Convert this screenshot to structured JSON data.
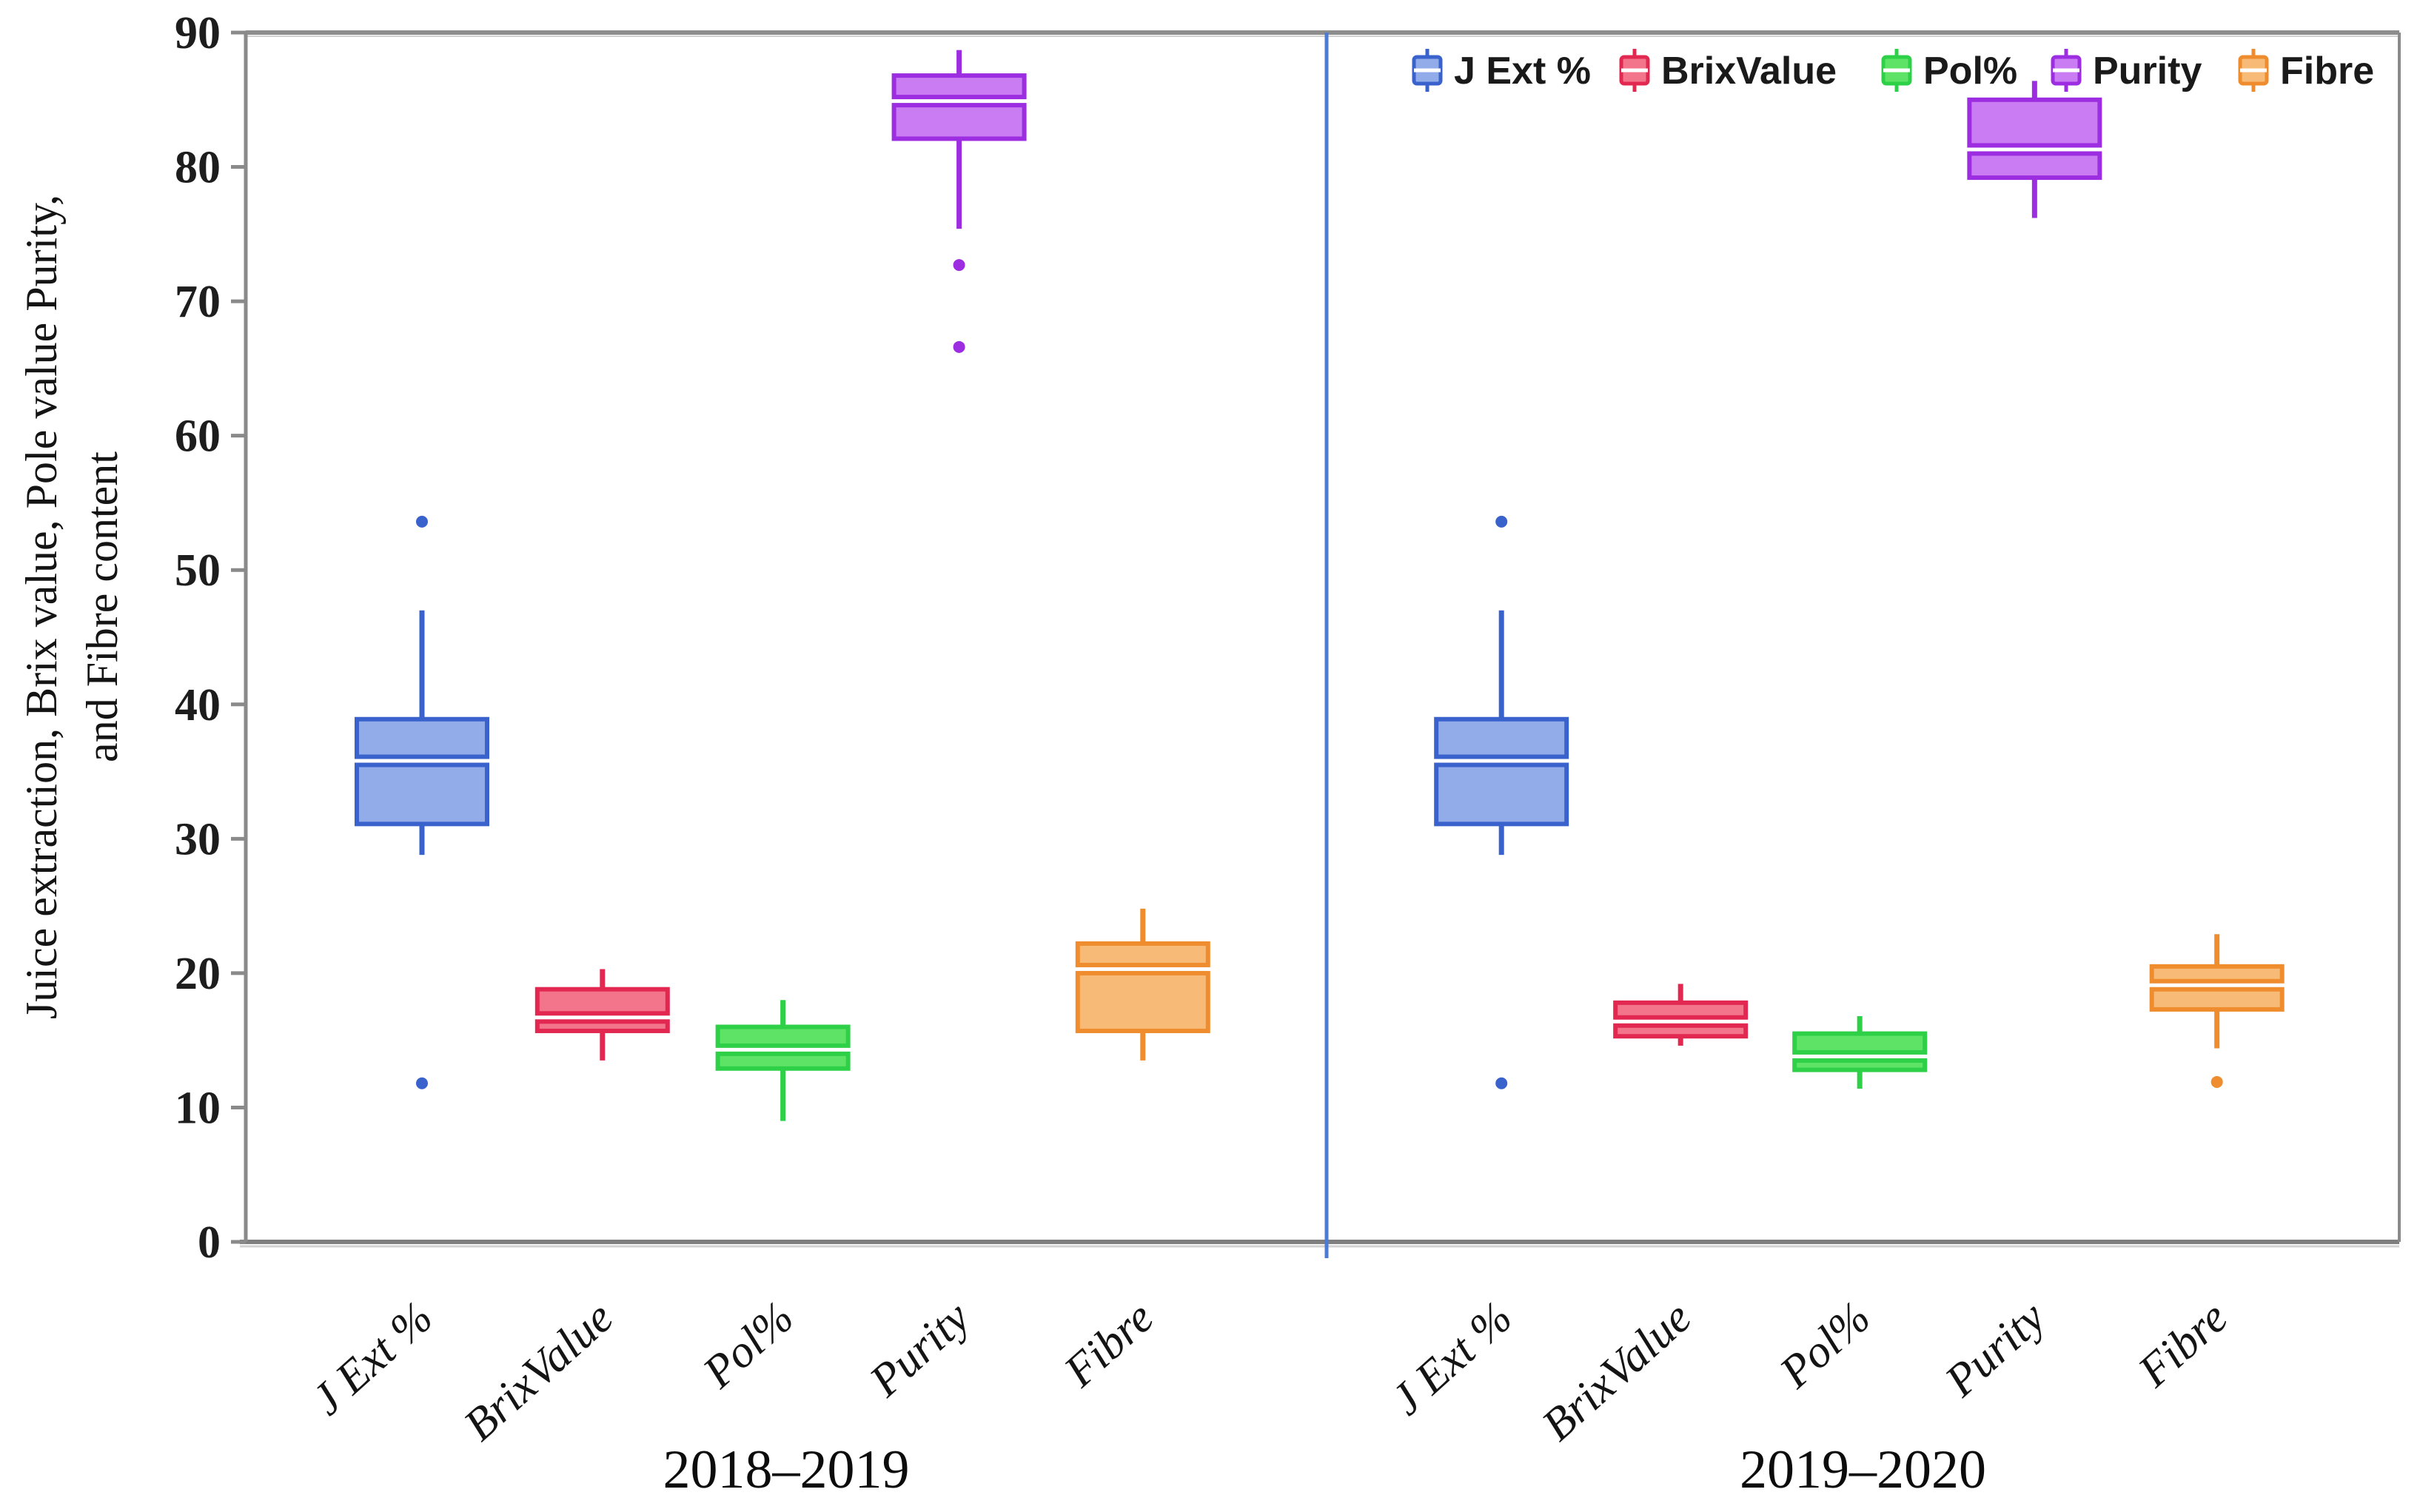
{
  "chart_data": {
    "type": "boxplot",
    "title": "",
    "ylabel_lines": [
      "Juice extraction, Brix value, Pole value Purity,",
      "and Fibre content"
    ],
    "xlabel": "",
    "ylim": [
      0,
      90
    ],
    "y_ticks": [
      0,
      10,
      20,
      30,
      40,
      50,
      60,
      70,
      80,
      90
    ],
    "grid": false,
    "legend_position": "top-right",
    "legend_items": [
      "J Ext %",
      "BrixValue",
      "Pol%",
      "Purity",
      "Fibre"
    ],
    "series": [
      {
        "name": "J Ext %",
        "fill": "#92abe9",
        "stroke": "#3a62cc"
      },
      {
        "name": "BrixValue",
        "fill": "#f3758b",
        "stroke": "#e22851"
      },
      {
        "name": "Pol%",
        "fill": "#5ee366",
        "stroke": "#2ed048"
      },
      {
        "name": "Purity",
        "fill": "#ca7cf3",
        "stroke": "#9c2de0"
      },
      {
        "name": "Fibre",
        "fill": "#f8bb77",
        "stroke": "#ee8c2e"
      }
    ],
    "groups": [
      {
        "label": "2018–2019",
        "boxes": [
          {
            "series": "J Ext %",
            "whisker_low": 28.8,
            "q1": 31.1,
            "median": 35.8,
            "q3": 38.9,
            "whisker_high": 47.0,
            "outliers": [
              53.6,
              11.8
            ]
          },
          {
            "series": "BrixValue",
            "whisker_low": 13.5,
            "q1": 15.7,
            "median": 16.7,
            "q3": 18.8,
            "whisker_high": 20.3,
            "outliers": []
          },
          {
            "series": "Pol%",
            "whisker_low": 9.0,
            "q1": 12.9,
            "median": 14.3,
            "q3": 16.0,
            "whisker_high": 18.0,
            "outliers": []
          },
          {
            "series": "Purity",
            "whisker_low": 75.4,
            "q1": 82.1,
            "median": 84.9,
            "q3": 86.8,
            "whisker_high": 88.7,
            "outliers": [
              72.7,
              66.6
            ]
          },
          {
            "series": "Fibre",
            "whisker_low": 13.5,
            "q1": 15.7,
            "median": 20.3,
            "q3": 22.2,
            "whisker_high": 24.8,
            "outliers": []
          }
        ]
      },
      {
        "label": "2019–2020",
        "boxes": [
          {
            "series": "J Ext %",
            "whisker_low": 28.8,
            "q1": 31.1,
            "median": 35.8,
            "q3": 38.9,
            "whisker_high": 47.0,
            "outliers": [
              53.6,
              11.8
            ]
          },
          {
            "series": "BrixValue",
            "whisker_low": 14.6,
            "q1": 15.3,
            "median": 16.4,
            "q3": 17.8,
            "whisker_high": 19.2,
            "outliers": []
          },
          {
            "series": "Pol%",
            "whisker_low": 11.4,
            "q1": 12.8,
            "median": 13.8,
            "q3": 15.5,
            "whisker_high": 16.8,
            "outliers": []
          },
          {
            "series": "Purity",
            "whisker_low": 76.2,
            "q1": 79.2,
            "median": 81.3,
            "q3": 85.0,
            "whisker_high": 86.4,
            "outliers": []
          },
          {
            "series": "Fibre",
            "whisker_low": 14.4,
            "q1": 17.3,
            "median": 19.1,
            "q3": 20.5,
            "whisker_high": 22.9,
            "outliers": [
              11.9
            ]
          }
        ]
      }
    ],
    "colors": {
      "divider": "#4d7bd3",
      "axis": "#8a8a8a",
      "axis_shadow": "#d2d2d2",
      "tick_text": "#1d1d1d",
      "label_text": "#141414"
    }
  }
}
